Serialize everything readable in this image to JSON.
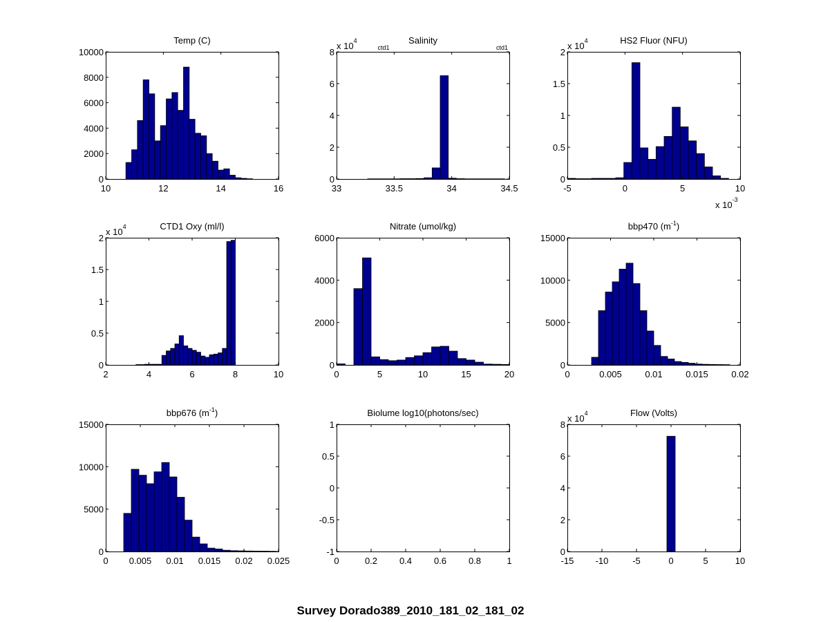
{
  "figure": {
    "suptitle": "Survey Dorado389_2010_181_02_181_02",
    "bar_color": "#00008F",
    "axis_color": "#000000"
  },
  "chart_data": [
    {
      "type": "bar",
      "title": "Temp (C)",
      "title_sup": "",
      "title_after": "",
      "xlim": [
        10,
        16
      ],
      "ylim": [
        0,
        10000
      ],
      "xticks": [
        10,
        12,
        14,
        16
      ],
      "xtick_labels": [
        "10",
        "12",
        "14",
        "16"
      ],
      "yticks": [
        0,
        2000,
        4000,
        6000,
        8000,
        10000
      ],
      "ytick_labels": [
        "0",
        "2000",
        "4000",
        "6000",
        "8000",
        "10000"
      ],
      "y_exponent": "",
      "x_exponent": "",
      "ctd_labels": [],
      "bin_edges": [
        10.7,
        10.9,
        11.1,
        11.3,
        11.5,
        11.7,
        11.9,
        12.1,
        12.3,
        12.5,
        12.7,
        12.9,
        13.1,
        13.3,
        13.5,
        13.7,
        13.9,
        14.1,
        14.3,
        14.5,
        14.7,
        14.9,
        15.1
      ],
      "values": [
        1300,
        2300,
        4600,
        7800,
        6700,
        3000,
        4200,
        6300,
        6800,
        5400,
        8800,
        4700,
        3600,
        3400,
        2000,
        1400,
        700,
        800,
        300,
        100,
        50,
        20
      ]
    },
    {
      "type": "bar",
      "title": "Salinity",
      "title_sup": "",
      "title_after": "",
      "xlim": [
        33,
        34.5
      ],
      "ylim": [
        0,
        8
      ],
      "xticks": [
        33,
        33.5,
        34,
        34.5
      ],
      "xtick_labels": [
        "33",
        "33.5",
        "34",
        "34.5"
      ],
      "yticks": [
        0,
        2,
        4,
        6,
        8
      ],
      "ytick_labels": [
        "0",
        "2",
        "4",
        "6",
        "8"
      ],
      "y_exponent": "4",
      "x_exponent": "",
      "ctd_labels": [
        "ctd1",
        "ctd1"
      ],
      "bin_edges": [
        33.27,
        33.34,
        33.41,
        33.48,
        33.55,
        33.62,
        33.69,
        33.76,
        33.83,
        33.9,
        33.97,
        34.04,
        34.11,
        34.18,
        34.25,
        34.32,
        34.39,
        34.46
      ],
      "values": [
        0.01,
        0.01,
        0.01,
        0.01,
        0.02,
        0.02,
        0.03,
        0.08,
        0.7,
        6.5,
        0.05,
        0.02,
        0.01,
        0.01,
        0.01,
        0.01,
        0.01
      ]
    },
    {
      "type": "bar",
      "title": "HS2 Fluor (NFU)",
      "title_sup": "",
      "title_after": "",
      "xlim": [
        -5,
        10
      ],
      "ylim": [
        0,
        2
      ],
      "xticks": [
        -5,
        0,
        5,
        10
      ],
      "xtick_labels": [
        "-5",
        "0",
        "5",
        "10"
      ],
      "yticks": [
        0,
        0.5,
        1,
        1.5,
        2
      ],
      "ytick_labels": [
        "0",
        "0.5",
        "1",
        "1.5",
        "2"
      ],
      "y_exponent": "4",
      "x_exponent": "-3",
      "ctd_labels": [],
      "bin_edges": [
        -5,
        -4.3,
        -3.6,
        -2.9,
        -2.2,
        -1.5,
        -0.8,
        -0.1,
        0.6,
        1.3,
        2.0,
        2.7,
        3.4,
        4.1,
        4.8,
        5.5,
        6.2,
        6.9,
        7.6,
        8.3,
        9.0
      ],
      "values": [
        0.01,
        0.005,
        0.005,
        0.01,
        0.01,
        0.01,
        0.02,
        0.26,
        1.83,
        0.49,
        0.31,
        0.51,
        0.67,
        1.13,
        0.82,
        0.6,
        0.4,
        0.19,
        0.05,
        0.01
      ]
    },
    {
      "type": "bar",
      "title": "CTD1 Oxy (ml/l)",
      "title_sup": "",
      "title_after": "",
      "xlim": [
        2,
        10
      ],
      "ylim": [
        0,
        2
      ],
      "xticks": [
        2,
        4,
        6,
        8,
        10
      ],
      "xtick_labels": [
        "2",
        "4",
        "6",
        "8",
        "10"
      ],
      "yticks": [
        0,
        0.5,
        1,
        1.5,
        2
      ],
      "ytick_labels": [
        "0",
        "0.5",
        "1",
        "1.5",
        "2"
      ],
      "y_exponent": "4",
      "x_exponent": "",
      "ctd_labels": [],
      "bin_edges": [
        3.4,
        3.6,
        3.8,
        4.0,
        4.2,
        4.4,
        4.6,
        4.8,
        5.0,
        5.2,
        5.4,
        5.6,
        5.8,
        6.0,
        6.2,
        6.4,
        6.6,
        6.8,
        7.0,
        7.2,
        7.4,
        7.6,
        7.8,
        8.0,
        8.2
      ],
      "values": [
        0.005,
        0.005,
        0.01,
        0.01,
        0.01,
        0.01,
        0.15,
        0.22,
        0.26,
        0.33,
        0.46,
        0.3,
        0.26,
        0.23,
        0.2,
        0.14,
        0.12,
        0.16,
        0.17,
        0.19,
        0.26,
        1.94,
        1.96,
        0.0
      ]
    },
    {
      "type": "bar",
      "title": "Nitrate (umol/kg)",
      "title_sup": "",
      "title_after": "",
      "xlim": [
        0,
        20
      ],
      "ylim": [
        0,
        6000
      ],
      "xticks": [
        0,
        5,
        10,
        15,
        20
      ],
      "xtick_labels": [
        "0",
        "5",
        "10",
        "15",
        "20"
      ],
      "yticks": [
        0,
        2000,
        4000,
        6000
      ],
      "ytick_labels": [
        "0",
        "2000",
        "4000",
        "6000"
      ],
      "y_exponent": "",
      "x_exponent": "",
      "ctd_labels": [],
      "bin_edges": [
        0,
        1,
        2,
        3,
        4,
        5,
        6,
        7,
        8,
        9,
        10,
        11,
        12,
        13,
        14,
        15,
        16,
        17,
        18,
        19,
        20
      ],
      "values": [
        50,
        0,
        3600,
        5050,
        380,
        250,
        200,
        230,
        350,
        430,
        580,
        850,
        880,
        650,
        300,
        230,
        130,
        40,
        30,
        20
      ]
    },
    {
      "type": "bar",
      "title": "bbp470 (m",
      "title_sup": "-1",
      "title_after": ")",
      "xlim": [
        0,
        0.02
      ],
      "ylim": [
        0,
        15000
      ],
      "xticks": [
        0,
        0.005,
        0.01,
        0.015,
        0.02
      ],
      "xtick_labels": [
        "0",
        "0.005",
        "0.01",
        "0.015",
        "0.02"
      ],
      "yticks": [
        0,
        5000,
        10000,
        15000
      ],
      "ytick_labels": [
        "0",
        "5000",
        "10000",
        "15000"
      ],
      "y_exponent": "",
      "x_exponent": "",
      "ctd_labels": [],
      "bin_edges": [
        0.0028,
        0.0036,
        0.0044,
        0.0052,
        0.006,
        0.0068,
        0.0076,
        0.0084,
        0.0092,
        0.01,
        0.0108,
        0.0116,
        0.0124,
        0.0132,
        0.014,
        0.0148,
        0.0156,
        0.0164,
        0.0172,
        0.018,
        0.0188
      ],
      "values": [
        900,
        6400,
        8600,
        9800,
        11300,
        12000,
        9600,
        6400,
        4000,
        2300,
        1000,
        700,
        400,
        300,
        200,
        100,
        70,
        50,
        40,
        30
      ]
    },
    {
      "type": "bar",
      "title": "bbp676 (m",
      "title_sup": "-1",
      "title_after": ")",
      "xlim": [
        0,
        0.025
      ],
      "ylim": [
        0,
        15000
      ],
      "xticks": [
        0,
        0.005,
        0.01,
        0.015,
        0.02,
        0.025
      ],
      "xtick_labels": [
        "0",
        "0.005",
        "0.01",
        "0.015",
        "0.02",
        "0.025"
      ],
      "yticks": [
        0,
        5000,
        10000,
        15000
      ],
      "ytick_labels": [
        "0",
        "5000",
        "10000",
        "15000"
      ],
      "y_exponent": "",
      "x_exponent": "",
      "ctd_labels": [],
      "bin_edges": [
        0.0026,
        0.0037,
        0.0048,
        0.0059,
        0.007,
        0.0081,
        0.0092,
        0.0103,
        0.0114,
        0.0125,
        0.0136,
        0.0147,
        0.0158,
        0.0169,
        0.018,
        0.0191,
        0.0202,
        0.0213,
        0.0224,
        0.0235,
        0.0246
      ],
      "values": [
        4500,
        9700,
        9000,
        8000,
        9400,
        10500,
        8800,
        6400,
        3700,
        1700,
        900,
        400,
        300,
        150,
        100,
        80,
        60,
        50,
        40,
        30
      ]
    },
    {
      "type": "bar",
      "title": "Biolume log10(photons/sec)",
      "title_sup": "",
      "title_after": "",
      "xlim": [
        0,
        1
      ],
      "ylim": [
        -1,
        1
      ],
      "xticks": [
        0,
        0.2,
        0.4,
        0.6,
        0.8,
        1
      ],
      "xtick_labels": [
        "0",
        "0.2",
        "0.4",
        "0.6",
        "0.8",
        "1"
      ],
      "yticks": [
        -1,
        -0.5,
        0,
        0.5,
        1
      ],
      "ytick_labels": [
        "-1",
        "-0.5",
        "0",
        "0.5",
        "1"
      ],
      "y_exponent": "",
      "x_exponent": "",
      "ctd_labels": [],
      "bin_edges": [],
      "values": []
    },
    {
      "type": "bar",
      "title": "Flow (Volts)",
      "title_sup": "",
      "title_after": "",
      "xlim": [
        -15,
        10
      ],
      "ylim": [
        0,
        8
      ],
      "xticks": [
        -15,
        -10,
        -5,
        0,
        5,
        10
      ],
      "xtick_labels": [
        "-15",
        "-10",
        "-5",
        "0",
        "5",
        "10"
      ],
      "yticks": [
        0,
        2,
        4,
        6,
        8
      ],
      "ytick_labels": [
        "0",
        "2",
        "4",
        "6",
        "8"
      ],
      "y_exponent": "4",
      "x_exponent": "",
      "ctd_labels": [],
      "bin_edges": [
        -0.6,
        0.6
      ],
      "values": [
        7.25
      ]
    }
  ]
}
